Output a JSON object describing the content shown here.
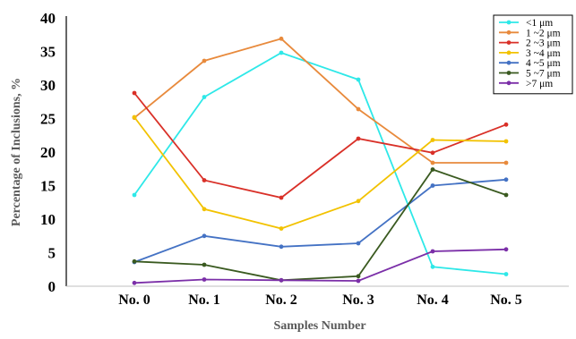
{
  "chart_data": {
    "type": "line",
    "title": "",
    "xlabel": "Samples Number",
    "ylabel": "Percentage of Inclusions, %",
    "categories": [
      "No. 0",
      "No. 1",
      "No. 2",
      "No. 3",
      "No. 4",
      "No. 5"
    ],
    "ylim": [
      0,
      40
    ],
    "yticks": [
      0,
      5,
      10,
      15,
      20,
      25,
      30,
      35,
      40
    ],
    "grid": false,
    "legend_position": "top-right",
    "series": [
      {
        "name": "<1   μm",
        "color": "#2ee8e8",
        "values": [
          13.6,
          28.2,
          34.8,
          30.8,
          2.9,
          1.8
        ]
      },
      {
        "name": "1 ~2  μm",
        "color": "#e88a3c",
        "values": [
          25.1,
          33.6,
          36.9,
          26.4,
          18.4,
          18.4
        ]
      },
      {
        "name": "2 ~3  μm",
        "color": "#d93028",
        "values": [
          28.8,
          15.8,
          13.2,
          22.0,
          19.9,
          24.1
        ]
      },
      {
        "name": "3 ~4  μm",
        "color": "#f2c200",
        "values": [
          25.2,
          11.5,
          8.6,
          12.7,
          21.8,
          21.6
        ]
      },
      {
        "name": "4 ~5  μm",
        "color": "#4472c4",
        "values": [
          3.6,
          7.5,
          5.9,
          6.4,
          15.0,
          15.9
        ]
      },
      {
        "name": "5 ~7  μm",
        "color": "#3a5a20",
        "values": [
          3.7,
          3.2,
          0.9,
          1.5,
          17.4,
          13.6
        ]
      },
      {
        "name": ">7   μm",
        "color": "#7b2fa8",
        "values": [
          0.5,
          1.0,
          0.9,
          0.8,
          5.2,
          5.5
        ]
      }
    ]
  }
}
